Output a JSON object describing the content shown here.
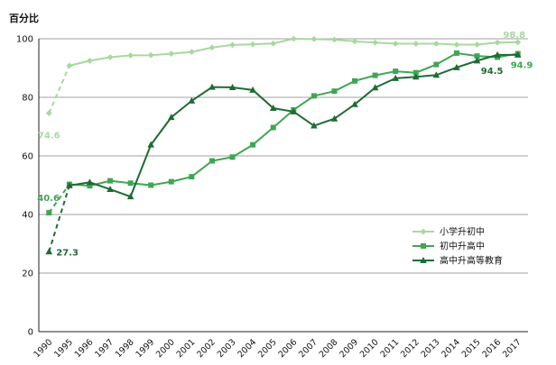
{
  "chart_data": {
    "type": "line",
    "title": "",
    "ylabel": "百分比",
    "xlabel": "",
    "ylim": [
      0,
      100
    ],
    "yticks": [
      0,
      20,
      40,
      60,
      80,
      100
    ],
    "grid": true,
    "legend_position": "lower-right",
    "categories": [
      "1990",
      "1995",
      "1996",
      "1997",
      "1998",
      "1999",
      "2000",
      "2001",
      "2002",
      "2003",
      "2004",
      "2005",
      "2006",
      "2007",
      "2008",
      "2009",
      "2010",
      "2011",
      "2012",
      "2013",
      "2014",
      "2015",
      "2016",
      "2017"
    ],
    "series": [
      {
        "name": "小学升初中",
        "color": "#a8d8a0",
        "marker": "diamond",
        "values": [
          74.6,
          90.8,
          92.5,
          93.7,
          94.3,
          94.4,
          94.9,
          95.5,
          97.0,
          97.9,
          98.1,
          98.4,
          100.0,
          99.9,
          99.7,
          99.1,
          98.7,
          98.3,
          98.3,
          98.3,
          98.0,
          98.0,
          98.7,
          98.8
        ],
        "labels": [
          {
            "index": 0,
            "text": "74.6"
          },
          {
            "index": 23,
            "text": "98.8"
          }
        ]
      },
      {
        "name": "初中升高中",
        "color": "#3fa653",
        "marker": "square",
        "values": [
          40.6,
          50.3,
          49.8,
          51.5,
          50.7,
          50.0,
          51.2,
          52.9,
          58.3,
          59.6,
          63.8,
          69.7,
          75.7,
          80.5,
          82.1,
          85.6,
          87.5,
          88.9,
          88.4,
          91.2,
          95.1,
          94.1,
          93.7,
          94.9
        ],
        "labels": [
          {
            "index": 0,
            "text": "40.6"
          },
          {
            "index": 23,
            "text": "94.9"
          }
        ]
      },
      {
        "name": "高中升高等教育",
        "color": "#1f6b34",
        "marker": "triangle",
        "values": [
          27.3,
          49.9,
          51.0,
          48.6,
          46.1,
          63.8,
          73.2,
          78.8,
          83.5,
          83.4,
          82.5,
          76.3,
          75.1,
          70.3,
          72.7,
          77.6,
          83.3,
          86.5,
          87.0,
          87.6,
          90.2,
          92.5,
          94.5,
          94.5
        ],
        "labels": [
          {
            "index": 0,
            "text": "27.3"
          },
          {
            "index": 22,
            "text": "94.5"
          }
        ]
      }
    ]
  }
}
